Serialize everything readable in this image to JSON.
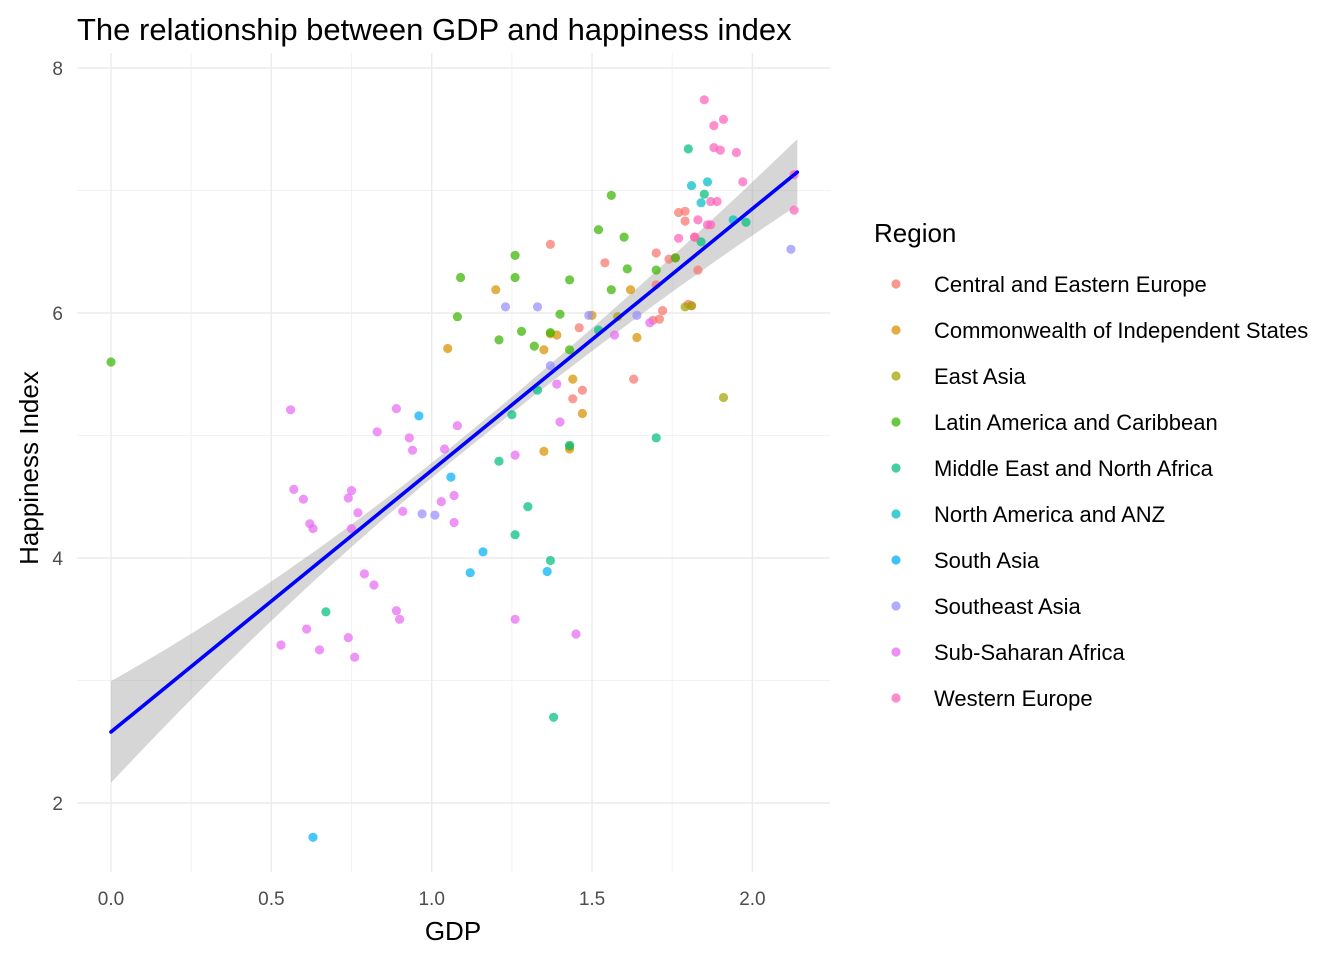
{
  "chart_data": {
    "type": "scatter",
    "title": "The relationship between GDP and happiness index",
    "xlabel": "GDP",
    "ylabel": "Happiness Index",
    "xlim": [
      -0.1,
      2.25
    ],
    "ylim": [
      1.45,
      8.1
    ],
    "x_ticks": [
      0.0,
      0.5,
      1.0,
      1.5,
      2.0
    ],
    "x_tick_labels": [
      "0.0",
      "0.5",
      "1.0",
      "1.5",
      "2.0"
    ],
    "y_ticks": [
      2,
      4,
      6,
      8
    ],
    "y_tick_labels": [
      "2",
      "4",
      "6",
      "8"
    ],
    "grid": true,
    "legend_title": "Region",
    "legend_position": "right",
    "trend_line": {
      "method": "linear",
      "x": [
        0.0,
        2.14
      ],
      "y": [
        2.58,
        7.15
      ],
      "band_start": [
        2.17,
        3.0
      ],
      "band_end": [
        6.88,
        7.42
      ],
      "color": "#0000ff"
    },
    "series": [
      {
        "name": "Central and Eastern Europe",
        "color": "#F8766D",
        "points": [
          [
            1.37,
            6.56
          ],
          [
            1.54,
            6.41
          ],
          [
            1.7,
            6.49
          ],
          [
            1.74,
            6.44
          ],
          [
            1.76,
            6.45
          ],
          [
            1.77,
            6.82
          ],
          [
            1.79,
            6.83
          ],
          [
            1.79,
            6.75
          ],
          [
            1.83,
            6.35
          ],
          [
            1.82,
            6.62
          ],
          [
            1.81,
            6.06
          ],
          [
            1.71,
            5.95
          ],
          [
            1.72,
            6.02
          ],
          [
            1.69,
            5.94
          ],
          [
            1.46,
            5.88
          ],
          [
            1.44,
            5.3
          ],
          [
            1.47,
            5.37
          ],
          [
            1.63,
            5.46
          ],
          [
            1.7,
            6.23
          ],
          [
            1.8,
            6.07
          ]
        ]
      },
      {
        "name": "Commonwealth of Independent States",
        "color": "#D89000",
        "points": [
          [
            1.05,
            5.71
          ],
          [
            1.2,
            6.19
          ],
          [
            1.37,
            5.83
          ],
          [
            1.39,
            5.82
          ],
          [
            1.35,
            5.7
          ],
          [
            1.5,
            5.98
          ],
          [
            1.62,
            6.19
          ],
          [
            1.64,
            5.8
          ],
          [
            1.44,
            5.46
          ],
          [
            1.47,
            5.18
          ],
          [
            1.43,
            4.89
          ],
          [
            1.35,
            4.87
          ]
        ]
      },
      {
        "name": "East Asia",
        "color": "#A3A500",
        "points": [
          [
            1.43,
            4.91
          ],
          [
            1.81,
            6.06
          ],
          [
            1.91,
            5.31
          ],
          [
            1.79,
            6.05
          ],
          [
            1.58,
            5.97
          ]
        ]
      },
      {
        "name": "Latin America and Caribbean",
        "color": "#39B600",
        "points": [
          [
            0.0,
            5.6
          ],
          [
            1.08,
            5.97
          ],
          [
            1.09,
            6.29
          ],
          [
            1.21,
            5.78
          ],
          [
            1.26,
            6.29
          ],
          [
            1.26,
            6.47
          ],
          [
            1.28,
            5.85
          ],
          [
            1.32,
            5.73
          ],
          [
            1.37,
            5.84
          ],
          [
            1.4,
            5.99
          ],
          [
            1.43,
            6.27
          ],
          [
            1.43,
            5.7
          ],
          [
            1.52,
            6.68
          ],
          [
            1.56,
            6.96
          ],
          [
            1.56,
            6.19
          ],
          [
            1.6,
            6.62
          ],
          [
            1.61,
            6.36
          ],
          [
            1.7,
            6.35
          ],
          [
            1.76,
            6.45
          ]
        ]
      },
      {
        "name": "Middle East and North Africa",
        "color": "#00BF7D",
        "points": [
          [
            0.67,
            3.56
          ],
          [
            1.21,
            4.79
          ],
          [
            1.25,
            5.17
          ],
          [
            1.26,
            4.19
          ],
          [
            1.3,
            4.42
          ],
          [
            1.33,
            5.37
          ],
          [
            1.37,
            3.98
          ],
          [
            1.38,
            2.7
          ],
          [
            1.43,
            4.92
          ],
          [
            1.52,
            5.86
          ],
          [
            1.7,
            4.98
          ],
          [
            1.8,
            7.34
          ],
          [
            1.84,
            6.58
          ],
          [
            1.85,
            6.97
          ],
          [
            1.98,
            6.74
          ]
        ]
      },
      {
        "name": "North America and ANZ",
        "color": "#00BFC4",
        "points": [
          [
            1.81,
            7.04
          ],
          [
            1.84,
            6.9
          ],
          [
            1.86,
            7.07
          ],
          [
            1.94,
            6.76
          ]
        ]
      },
      {
        "name": "South Asia",
        "color": "#00B0F6",
        "points": [
          [
            0.63,
            1.72
          ],
          [
            0.96,
            5.16
          ],
          [
            1.06,
            4.66
          ],
          [
            1.12,
            3.88
          ],
          [
            1.16,
            4.05
          ],
          [
            1.36,
            3.89
          ]
        ]
      },
      {
        "name": "Southeast Asia",
        "color": "#9590FF",
        "points": [
          [
            0.97,
            4.36
          ],
          [
            1.01,
            4.35
          ],
          [
            1.23,
            6.05
          ],
          [
            1.33,
            6.05
          ],
          [
            1.37,
            5.57
          ],
          [
            1.49,
            5.98
          ],
          [
            1.64,
            5.98
          ],
          [
            2.12,
            6.52
          ]
        ]
      },
      {
        "name": "Sub-Saharan Africa",
        "color": "#E76BF3",
        "points": [
          [
            0.53,
            3.29
          ],
          [
            0.56,
            5.21
          ],
          [
            0.57,
            4.56
          ],
          [
            0.6,
            4.48
          ],
          [
            0.61,
            3.42
          ],
          [
            0.62,
            4.28
          ],
          [
            0.63,
            4.24
          ],
          [
            0.65,
            3.25
          ],
          [
            0.74,
            3.35
          ],
          [
            0.74,
            4.49
          ],
          [
            0.75,
            4.55
          ],
          [
            0.75,
            4.24
          ],
          [
            0.76,
            3.19
          ],
          [
            0.77,
            4.37
          ],
          [
            0.79,
            3.87
          ],
          [
            0.82,
            3.78
          ],
          [
            0.83,
            5.03
          ],
          [
            0.89,
            5.22
          ],
          [
            0.89,
            3.57
          ],
          [
            0.9,
            3.5
          ],
          [
            0.91,
            4.38
          ],
          [
            0.93,
            4.98
          ],
          [
            0.94,
            4.88
          ],
          [
            1.03,
            4.46
          ],
          [
            1.04,
            4.89
          ],
          [
            1.07,
            4.51
          ],
          [
            1.07,
            4.29
          ],
          [
            1.08,
            5.08
          ],
          [
            1.26,
            3.5
          ],
          [
            1.26,
            4.84
          ],
          [
            1.39,
            5.42
          ],
          [
            1.4,
            5.11
          ],
          [
            1.45,
            3.38
          ],
          [
            1.57,
            5.82
          ],
          [
            1.68,
            5.92
          ]
        ]
      },
      {
        "name": "Western Europe",
        "color": "#FF62BC",
        "points": [
          [
            1.85,
            7.74
          ],
          [
            1.88,
            7.53
          ],
          [
            1.91,
            7.58
          ],
          [
            1.88,
            7.35
          ],
          [
            1.9,
            7.33
          ],
          [
            1.95,
            7.31
          ],
          [
            1.97,
            7.07
          ],
          [
            1.87,
            6.91
          ],
          [
            1.89,
            6.91
          ],
          [
            1.87,
            6.72
          ],
          [
            1.82,
            6.62
          ],
          [
            1.77,
            6.61
          ],
          [
            1.83,
            6.76
          ],
          [
            1.86,
            6.72
          ],
          [
            2.13,
            7.13
          ],
          [
            2.13,
            6.84
          ]
        ]
      }
    ]
  }
}
